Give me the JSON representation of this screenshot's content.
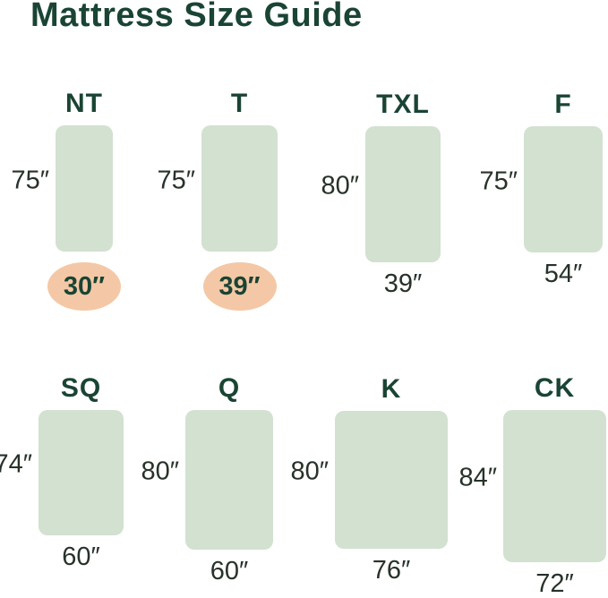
{
  "title": "Mattress Size Guide",
  "colors": {
    "mattress_fill": "#d2e1d0",
    "highlight_fill": "#f4c8a6",
    "heading_text": "#1a4433",
    "dimension_text": "#273229"
  },
  "mattresses": [
    {
      "code": "NT",
      "length_label": "75″",
      "width_label": "30″",
      "width_highlighted": true
    },
    {
      "code": "T",
      "length_label": "75″",
      "width_label": "39″",
      "width_highlighted": true
    },
    {
      "code": "TXL",
      "length_label": "80″",
      "width_label": "39″",
      "width_highlighted": false
    },
    {
      "code": "F",
      "length_label": "75″",
      "width_label": "54″",
      "width_highlighted": false
    },
    {
      "code": "SQ",
      "length_label": "74″",
      "width_label": "60″",
      "width_highlighted": false
    },
    {
      "code": "Q",
      "length_label": "80″",
      "width_label": "60″",
      "width_highlighted": false
    },
    {
      "code": "K",
      "length_label": "80″",
      "width_label": "76″",
      "width_highlighted": false
    },
    {
      "code": "CK",
      "length_label": "84″",
      "width_label": "72″",
      "width_highlighted": false
    }
  ]
}
